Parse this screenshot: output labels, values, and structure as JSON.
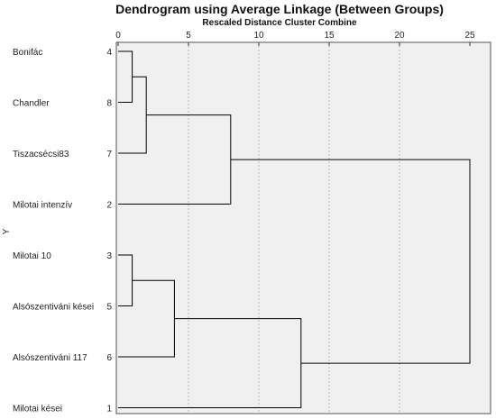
{
  "chart_data": {
    "type": "dendrogram",
    "title": "Dendrogram using Average Linkage (Between Groups)",
    "xlabel": "Rescaled Distance Cluster Combine",
    "ylabel": "Y",
    "xlim": [
      0,
      25
    ],
    "xticks": [
      0,
      5,
      10,
      15,
      20,
      25
    ],
    "grid": true,
    "leaves": [
      {
        "name": "Bonifác",
        "id": "4"
      },
      {
        "name": "Chandler",
        "id": "8"
      },
      {
        "name": "Tiszacsécsi83",
        "id": "7"
      },
      {
        "name": "Milotai intenzív",
        "id": "2"
      },
      {
        "name": "Milotai 10",
        "id": "3"
      },
      {
        "name": "Alsószentiváni kései",
        "id": "5"
      },
      {
        "name": "Alsószentiváni 117",
        "id": "6"
      },
      {
        "name": "Milotai kései",
        "id": "1"
      }
    ],
    "merges": [
      {
        "left": "L0",
        "right": "L1",
        "distance": 1
      },
      {
        "left": "M0",
        "right": "L2",
        "distance": 2
      },
      {
        "left": "M1",
        "right": "L3",
        "distance": 8
      },
      {
        "left": "L4",
        "right": "L5",
        "distance": 1
      },
      {
        "left": "M3",
        "right": "L6",
        "distance": 4
      },
      {
        "left": "M4",
        "right": "L7",
        "distance": 13
      },
      {
        "left": "M2",
        "right": "M5",
        "distance": 25
      }
    ],
    "colors": {
      "plot_bg": "#f0f0f0",
      "line": "#000000",
      "grid": "#bdbdbd"
    }
  }
}
